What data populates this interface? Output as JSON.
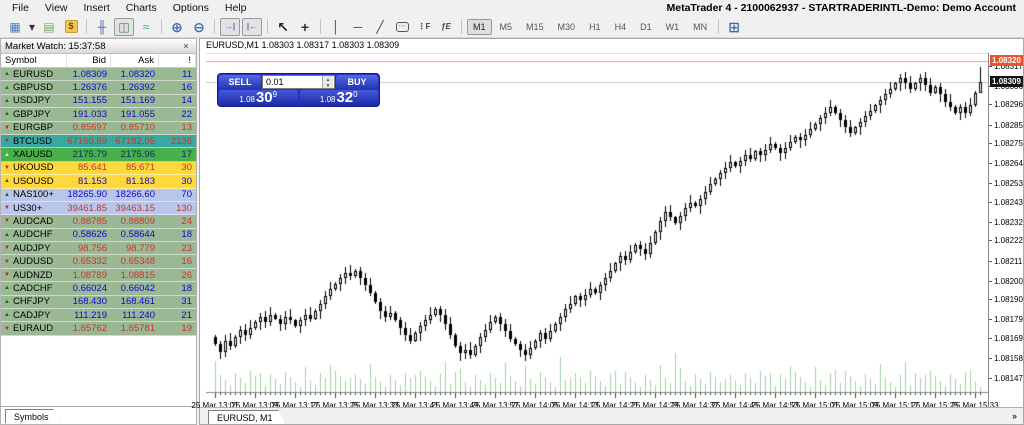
{
  "window": {
    "title_right": "MetaTrader 4 - 2100062937 - STARTRADERINTL-Demo: Demo Account"
  },
  "menu": {
    "items": [
      "File",
      "View",
      "Insert",
      "Charts",
      "Options",
      "Help"
    ]
  },
  "toolbar": {
    "link": "MQL5.community",
    "icons_left": [
      {
        "name": "new-chart-icon",
        "glyph": "▦",
        "color": "#4a7ab5"
      },
      {
        "name": "dropdown-caret-icon",
        "glyph": "▾",
        "color": "#333333",
        "narrow": true
      },
      {
        "name": "new-window-icon",
        "glyph": "▤",
        "color": "#7aa85a"
      },
      {
        "name": "new-order-icon",
        "glyph": "$",
        "color": "#6b4a08",
        "boxed": true
      },
      {
        "sep": true
      },
      {
        "name": "bar-chart-icon",
        "glyph": "╫",
        "color": "#4a6ab0"
      },
      {
        "name": "candlestick-chart-icon",
        "glyph": "◫",
        "color": "#3a8a3a",
        "active": true
      },
      {
        "name": "line-chart-icon",
        "glyph": "≈",
        "color": "#4a9a4a"
      },
      {
        "sep": true
      },
      {
        "name": "zoom-in-icon",
        "glyph": "⊕",
        "color": "#3a6ab8",
        "big": true
      },
      {
        "name": "zoom-out-icon",
        "glyph": "⊖",
        "color": "#3a6ab8",
        "big": true
      },
      {
        "sep": true
      },
      {
        "name": "autoscroll-icon",
        "glyph": "→|",
        "color": "#3a6ab8",
        "active": true,
        "small": true
      },
      {
        "name": "chart-shift-icon",
        "glyph": "|←",
        "color": "#3a6ab8",
        "active": true,
        "small": true
      },
      {
        "sep": true
      },
      {
        "name": "cursor-icon",
        "glyph": "↖",
        "color": "#222222",
        "big": true
      },
      {
        "name": "crosshair-icon",
        "glyph": "+",
        "color": "#333333",
        "big": true
      },
      {
        "sep": true
      },
      {
        "name": "vertical-line-icon",
        "glyph": "│",
        "color": "#444444"
      },
      {
        "name": "horizontal-line-icon",
        "glyph": "─",
        "color": "#444444"
      },
      {
        "name": "trendline-icon",
        "glyph": "╱",
        "color": "#444444"
      },
      {
        "name": "text-label-icon",
        "glyph": "⋯",
        "color": "#555555",
        "bubble": true
      },
      {
        "name": "fibonacci-icon",
        "glyph": "⋮F",
        "color": "#444444",
        "small": true
      },
      {
        "name": "indicators-icon",
        "glyph": "ƒE",
        "color": "#444444",
        "small": true,
        "italic": true
      },
      {
        "sep": true
      }
    ],
    "timeframes": [
      {
        "label": "M1",
        "active": true
      },
      {
        "label": "M5"
      },
      {
        "label": "M15"
      },
      {
        "label": "M30"
      },
      {
        "label": "H1"
      },
      {
        "label": "H4"
      },
      {
        "label": "D1"
      },
      {
        "label": "W1"
      },
      {
        "label": "MN"
      }
    ],
    "icons_right": [
      {
        "sep": true
      },
      {
        "name": "tile-windows-icon",
        "glyph": "⊞",
        "color": "#3a6ab8",
        "big": true
      }
    ]
  },
  "market_watch": {
    "title": "Market Watch: 15:37:58",
    "close_glyph": "×",
    "arrow_up": "▲",
    "arrow_down": "▼",
    "columns": [
      "Symbol",
      "Bid",
      "Ask",
      "!"
    ],
    "tab": "Symbols",
    "rows": [
      {
        "symbol": "EURUSD",
        "bid": "1.08309",
        "ask": "1.08320",
        "spread": "11",
        "dir": "up",
        "bg": "green",
        "tc": "blue"
      },
      {
        "symbol": "GBPUSD",
        "bid": "1.26376",
        "ask": "1.26392",
        "spread": "16",
        "dir": "up",
        "bg": "green",
        "tc": "blue"
      },
      {
        "symbol": "USDJPY",
        "bid": "151.155",
        "ask": "151.169",
        "spread": "14",
        "dir": "up",
        "bg": "green",
        "tc": "blue"
      },
      {
        "symbol": "GBPJPY",
        "bid": "191.033",
        "ask": "191.055",
        "spread": "22",
        "dir": "up",
        "bg": "green",
        "tc": "blue"
      },
      {
        "symbol": "EURGBP",
        "bid": "0.85697",
        "ask": "0.85710",
        "spread": "13",
        "dir": "down",
        "bg": "green",
        "tc": "red"
      },
      {
        "symbol": "BTCUSD",
        "bid": "67160.69",
        "ask": "67182.05",
        "spread": "2136",
        "dir": "down",
        "bg": "teal",
        "tc": "red"
      },
      {
        "symbol": "XAUUSD",
        "bid": "2175.79",
        "ask": "2175.96",
        "spread": "17",
        "dir": "up-pale",
        "bg": "bright",
        "tc": "dark"
      },
      {
        "symbol": "UKOUSD",
        "bid": "85.641",
        "ask": "85.671",
        "spread": "30",
        "dir": "down",
        "bg": "yellow",
        "tc": "red"
      },
      {
        "symbol": "USOUSD",
        "bid": "81.153",
        "ask": "81.183",
        "spread": "30",
        "dir": "up",
        "bg": "yellow",
        "tc": "blue"
      },
      {
        "symbol": "NAS100+",
        "bid": "18265.90",
        "ask": "18266.60",
        "spread": "70",
        "dir": "up",
        "bg": "blue",
        "tc": "blue"
      },
      {
        "symbol": "US30+",
        "bid": "39461.85",
        "ask": "39463.15",
        "spread": "130",
        "dir": "down",
        "bg": "blue",
        "tc": "red"
      },
      {
        "symbol": "AUDCAD",
        "bid": "0.88785",
        "ask": "0.88809",
        "spread": "24",
        "dir": "down",
        "bg": "green",
        "tc": "red"
      },
      {
        "symbol": "AUDCHF",
        "bid": "0.58626",
        "ask": "0.58644",
        "spread": "18",
        "dir": "up",
        "bg": "green",
        "tc": "blue"
      },
      {
        "symbol": "AUDJPY",
        "bid": "98.756",
        "ask": "98.779",
        "spread": "23",
        "dir": "down",
        "bg": "green",
        "tc": "red"
      },
      {
        "symbol": "AUDUSD",
        "bid": "0.65332",
        "ask": "0.65348",
        "spread": "16",
        "dir": "down",
        "bg": "green",
        "tc": "red"
      },
      {
        "symbol": "AUDNZD",
        "bid": "1.08789",
        "ask": "1.08815",
        "spread": "26",
        "dir": "down",
        "bg": "green",
        "tc": "red"
      },
      {
        "symbol": "CADCHF",
        "bid": "0.66024",
        "ask": "0.66042",
        "spread": "18",
        "dir": "up",
        "bg": "green",
        "tc": "blue"
      },
      {
        "symbol": "CHFJPY",
        "bid": "168.430",
        "ask": "168.461",
        "spread": "31",
        "dir": "up",
        "bg": "green",
        "tc": "blue"
      },
      {
        "symbol": "CADJPY",
        "bid": "111.219",
        "ask": "111.240",
        "spread": "21",
        "dir": "up",
        "bg": "green",
        "tc": "blue"
      },
      {
        "symbol": "EURAUD",
        "bid": "1.65762",
        "ask": "1.65781",
        "spread": "19",
        "dir": "down",
        "bg": "green",
        "tc": "red"
      }
    ]
  },
  "chart": {
    "header": "EURUSD,M1 1.08303 1.08317 1.08303 1.08309",
    "tab": "EURUSD, M1",
    "overflow_chevron": "»",
    "ask_price": "1.08320",
    "bid_price": "1.08309",
    "trade_panel": {
      "sell_label": "SELL",
      "buy_label": "BUY",
      "volume": "0.01",
      "spinner_up": "▲",
      "spinner_down": "▼",
      "sell_price_small": "1.08",
      "sell_price_big": "30",
      "sell_price_sup": "9",
      "buy_price_small": "1.08",
      "buy_price_big": "32",
      "buy_price_sup": "0"
    }
  },
  "chart_data": {
    "type": "candlestick",
    "symbol": "EURUSD",
    "timeframe": "M1",
    "title": "EURUSD,M1",
    "date": "25 Mar",
    "start_time": "13:01",
    "end_time": "15:34",
    "bid": 1.08309,
    "ask": 1.0832,
    "ohlc_last": {
      "open": 1.08303,
      "high": 1.08317,
      "low": 1.08303,
      "close": 1.08309
    },
    "y_range": [
      1.0814,
      1.08324
    ],
    "y_ticks": [
      1.08317,
      1.08306,
      1.08296,
      1.08285,
      1.08275,
      1.08264,
      1.08253,
      1.08243,
      1.08232,
      1.08222,
      1.08211,
      1.082,
      1.0819,
      1.08179,
      1.08169,
      1.08158,
      1.08147
    ],
    "x_labels": [
      "25 Mar 13:01",
      "25 Mar 13:09",
      "25 Mar 13:17",
      "25 Mar 13:25",
      "25 Mar 13:33",
      "25 Mar 13:41",
      "25 Mar 13:49",
      "25 Mar 13:57",
      "25 Mar 14:05",
      "25 Mar 14:13",
      "25 Mar 14:21",
      "25 Mar 14:29",
      "25 Mar 14:37",
      "25 Mar 14:45",
      "25 Mar 14:53",
      "25 Mar 15:01",
      "25 Mar 15:09",
      "25 Mar 15:17",
      "25 Mar 15:25",
      "25 Mar 15:33"
    ],
    "price_base": 1.08,
    "point": 1e-05,
    "first_open_points": 170,
    "closes_points": [
      166,
      162,
      168,
      165,
      170,
      174,
      171,
      175,
      178,
      181,
      178,
      182,
      180,
      177,
      181,
      179,
      176,
      179,
      182,
      180,
      184,
      188,
      192,
      196,
      199,
      202,
      205,
      203,
      206,
      202,
      198,
      194,
      189,
      184,
      181,
      183,
      179,
      175,
      171,
      168,
      172,
      176,
      179,
      182,
      185,
      182,
      177,
      171,
      165,
      161,
      163,
      160,
      165,
      170,
      174,
      178,
      181,
      177,
      173,
      169,
      166,
      163,
      160,
      164,
      168,
      172,
      169,
      173,
      177,
      181,
      185,
      188,
      192,
      190,
      193,
      196,
      194,
      198,
      202,
      206,
      210,
      214,
      212,
      216,
      220,
      218,
      215,
      221,
      227,
      233,
      238,
      235,
      232,
      236,
      240,
      243,
      241,
      245,
      249,
      253,
      256,
      259,
      262,
      265,
      263,
      266,
      269,
      267,
      271,
      269,
      272,
      275,
      273,
      270,
      273,
      276,
      279,
      277,
      280,
      283,
      286,
      289,
      292,
      295,
      292,
      288,
      284,
      281,
      284,
      287,
      290,
      293,
      296,
      299,
      302,
      305,
      308,
      311,
      308,
      305,
      308,
      311,
      307,
      303,
      306,
      302,
      298,
      295,
      292,
      295,
      292,
      296,
      303,
      309
    ]
  },
  "colors": {
    "ask_line": "#f2997d",
    "bid_line": "#c8c8c8",
    "bull": "#ffffff",
    "bear": "#000000",
    "wick": "#000000",
    "volume": "#a8d0a8",
    "axis_border": "#888888",
    "tick": "#444444",
    "ask_flag_bg": "#e6552b",
    "bid_flag_bg": "#141414",
    "panel_blue": "#2a30c4"
  }
}
